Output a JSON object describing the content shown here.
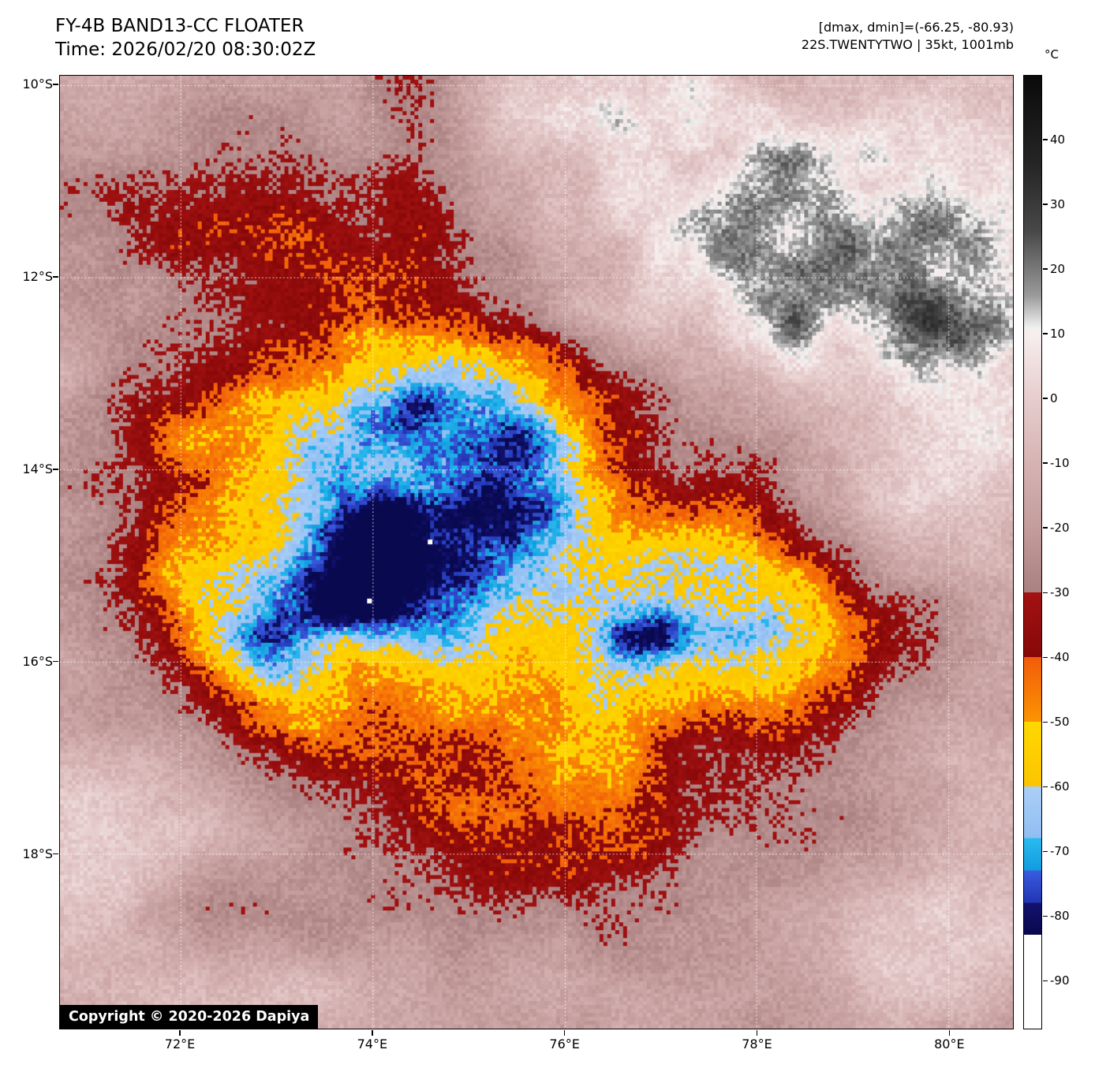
{
  "header": {
    "title": "FY-4B BAND13-CC FLOATER",
    "time_line": "Time: 2026/02/20 08:30:02Z",
    "annotation_line1": "[dmax, dmin]=(-66.25, -80.93)",
    "annotation_line2": "22S.TWENTYTWO | 35kt, 1001mb"
  },
  "copyright": "Copyright © 2020-2026 Dapiya",
  "colorbar": {
    "unit": "°C",
    "temp_range": [
      50,
      -97.5
    ],
    "tick_values": [
      40,
      30,
      20,
      10,
      0,
      -10,
      -20,
      -30,
      -40,
      -50,
      -60,
      -70,
      -80,
      -90
    ],
    "tick_labels": [
      "40",
      "30",
      "20",
      "10",
      "0",
      "-10",
      "-20",
      "-30",
      "-40",
      "-50",
      "-60",
      "-70",
      "-80",
      "-90"
    ],
    "stops": [
      [
        50,
        "#0a0a0a"
      ],
      [
        36,
        "#262626"
      ],
      [
        26,
        "#484848"
      ],
      [
        16,
        "#9a9a9a"
      ],
      [
        11,
        "#f0f0f0"
      ],
      [
        10,
        "#f7eeee"
      ],
      [
        0,
        "#e7cdcd"
      ],
      [
        -10,
        "#d6b3b3"
      ],
      [
        -20,
        "#c49c9c"
      ],
      [
        -30,
        "#aa8080"
      ],
      [
        -30,
        "#a31212"
      ],
      [
        -40,
        "#860808"
      ],
      [
        -40,
        "#f25c0a"
      ],
      [
        -50,
        "#fb9403"
      ],
      [
        -50,
        "#ffd800"
      ],
      [
        -60,
        "#fcc400"
      ],
      [
        -60,
        "#abcff7"
      ],
      [
        -68,
        "#90bef2"
      ],
      [
        -68,
        "#2abaef"
      ],
      [
        -73,
        "#129cdf"
      ],
      [
        -73,
        "#3b5ce0"
      ],
      [
        -78,
        "#2135b2"
      ],
      [
        -78,
        "#13136f"
      ],
      [
        -83,
        "#08084d"
      ],
      [
        -83,
        "#ffffff"
      ],
      [
        -97.5,
        "#ffffff"
      ]
    ]
  },
  "axes": {
    "x_ticks": [
      {
        "value": 72,
        "label": "72°E"
      },
      {
        "value": 74,
        "label": "74°E"
      },
      {
        "value": 76,
        "label": "76°E"
      },
      {
        "value": 78,
        "label": "78°E"
      },
      {
        "value": 80,
        "label": "80°E"
      }
    ],
    "y_ticks": [
      {
        "value": 10,
        "label": "10°S"
      },
      {
        "value": 12,
        "label": "12°S"
      },
      {
        "value": 14,
        "label": "14°S"
      },
      {
        "value": 16,
        "label": "16°S"
      },
      {
        "value": 18,
        "label": "18°S"
      }
    ]
  },
  "chart_data": {
    "type": "heatmap",
    "title": "FY-4B BAND13-CC FLOATER infrared brightness-temperature floater image of tropical cyclone 22S",
    "lon_range": [
      70.745,
      80.67
    ],
    "lat_range": [
      9.902,
      19.824
    ],
    "grid_lons": [
      72,
      74,
      76,
      78,
      80
    ],
    "grid_lats": [
      10,
      12,
      14,
      16,
      18
    ],
    "storm_id": "22S.TWENTYTWO",
    "wind_kt": 35,
    "pressure_mb": 1001,
    "dmax_c": -66.25,
    "dmin_c": -80.93,
    "pixel_size": 5,
    "base_temp": -17,
    "base_noise_amp": 13,
    "speckle_amp": 4.5,
    "clamp_min": -82.5,
    "warm_features": [
      {
        "c": [
          78.7,
          11.5
        ],
        "s": [
          2.6,
          2.0
        ],
        "a": 46,
        "n": 1
      },
      {
        "c": [
          76.4,
          10.0
        ],
        "s": [
          1.3,
          0.9
        ],
        "a": 26,
        "n": 1
      },
      {
        "c": [
          80.6,
          13.9
        ],
        "s": [
          1.3,
          1.4
        ],
        "a": 22,
        "n": 1
      },
      {
        "c": [
          71.1,
          18.3
        ],
        "s": [
          0.95,
          1.3
        ],
        "a": 26,
        "n": 1
      },
      {
        "c": [
          72.3,
          19.6
        ],
        "s": [
          1.2,
          0.7
        ],
        "a": 14,
        "n": 1
      },
      {
        "c": [
          79.9,
          18.8
        ],
        "s": [
          1.3,
          1.0
        ],
        "a": 15,
        "n": 1
      },
      {
        "c": [
          80.5,
          16.6
        ],
        "s": [
          0.9,
          0.9
        ],
        "a": 10,
        "n": 1
      }
    ],
    "cold_features": [
      {
        "c": [
          74.5,
          14.7
        ],
        "s": [
          2.55,
          2.3
        ],
        "a": 42
      },
      {
        "c": [
          74.3,
          13.2
        ],
        "s": [
          1.8,
          1.05
        ],
        "a": 22
      },
      {
        "c": [
          74.2,
          15.0
        ],
        "s": [
          1.55,
          1.2
        ],
        "a": 24
      },
      {
        "c": [
          73.95,
          15.1
        ],
        "s": [
          0.62,
          0.52
        ],
        "a": 11
      },
      {
        "c": [
          72.95,
          16.05
        ],
        "s": [
          0.85,
          1.05
        ],
        "a": 24
      },
      {
        "c": [
          75.6,
          14.0
        ],
        "s": [
          1.15,
          0.9
        ],
        "a": 20
      },
      {
        "c": [
          77.7,
          15.6
        ],
        "s": [
          1.8,
          1.4
        ],
        "a": 30
      },
      {
        "c": [
          78.4,
          15.9
        ],
        "s": [
          0.8,
          0.75
        ],
        "a": 14
      },
      {
        "c": [
          76.8,
          15.72
        ],
        "s": [
          0.42,
          0.34
        ],
        "a": 26
      },
      {
        "c": [
          77.55,
          14.8
        ],
        "s": [
          0.6,
          0.38
        ],
        "a": 8
      },
      {
        "c": [
          78.05,
          16.55
        ],
        "s": [
          0.75,
          0.45
        ],
        "a": 8
      },
      {
        "c": [
          76.2,
          17.3
        ],
        "s": [
          1.2,
          0.9
        ],
        "a": 18
      },
      {
        "c": [
          73.1,
          11.3
        ],
        "s": [
          1.9,
          0.8
        ],
        "a": 15
      },
      {
        "c": [
          74.55,
          10.6
        ],
        "s": [
          0.55,
          1.0
        ],
        "a": 22
      },
      {
        "c": [
          72.3,
          14.9
        ],
        "s": [
          1.15,
          1.35
        ],
        "a": 13
      },
      {
        "c": [
          74.8,
          17.9
        ],
        "s": [
          1.6,
          1.0
        ],
        "a": 14
      },
      {
        "c": [
          76.6,
          19.2
        ],
        "s": [
          0.7,
          0.5
        ],
        "a": 9
      },
      {
        "c": [
          72.9,
          18.45
        ],
        "s": [
          0.8,
          0.55
        ],
        "a": 8
      }
    ],
    "warm_specks": [
      [
        74.6,
        14.76
      ],
      [
        73.97,
        15.37
      ]
    ]
  }
}
